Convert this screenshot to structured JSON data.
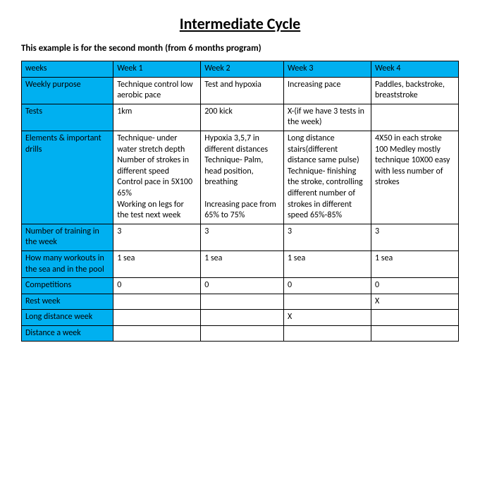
{
  "title": "Intermediate Cycle",
  "subtitle": "This example is for the second month (from 6 months program)",
  "colors": {
    "header_bg": "#00b0f0",
    "border": "#000000",
    "background": "#ffffff",
    "text": "#000000"
  },
  "columns": [
    "weeks",
    "Week 1",
    "Week 2",
    "Week 3",
    "Week 4"
  ],
  "rows": [
    {
      "label": "Weekly purpose",
      "cells": [
        "Technique control low aerobic pace",
        "Test and hypoxia",
        "Increasing pace",
        "Paddles, backstroke, breaststroke"
      ]
    },
    {
      "label": "Tests",
      "cells": [
        "1km",
        "200 kick",
        "X-(if we have 3 tests in the week)",
        ""
      ]
    },
    {
      "label": "Elements & important drills",
      "cells": [
        "Technique- under water stretch depth\nNumber of strokes  in different speed\nControl pace in 5X100 65%\nWorking on legs for the test next week",
        "Hypoxia 3,5,7 in different distances\nTechnique- Palm, head position, breathing\n\nIncreasing pace from 65% to 75%",
        "Long distance stairs(different distance same pulse)\nTechnique- finishing the stroke, controlling different number of strokes in different speed 65%-85%",
        "4X50 in each stroke\n 100 Medley mostly technique 10X00 easy with less number of strokes"
      ]
    },
    {
      "label": "Number of training in the week",
      "cells": [
        "3",
        "3",
        "3",
        "3"
      ]
    },
    {
      "label": "How many workouts in the sea and in the pool",
      "cells": [
        "1 sea",
        "1 sea",
        "1 sea",
        "1 sea"
      ]
    },
    {
      "label": "Competitions",
      "cells": [
        "0",
        "0",
        "0",
        "0"
      ]
    },
    {
      "label": "Rest week",
      "cells": [
        "",
        "",
        "",
        "X"
      ]
    },
    {
      "label": "Long distance week",
      "cells": [
        "",
        "",
        "X",
        ""
      ]
    },
    {
      "label": "Distance a week",
      "cells": [
        "",
        "",
        "",
        ""
      ]
    }
  ]
}
